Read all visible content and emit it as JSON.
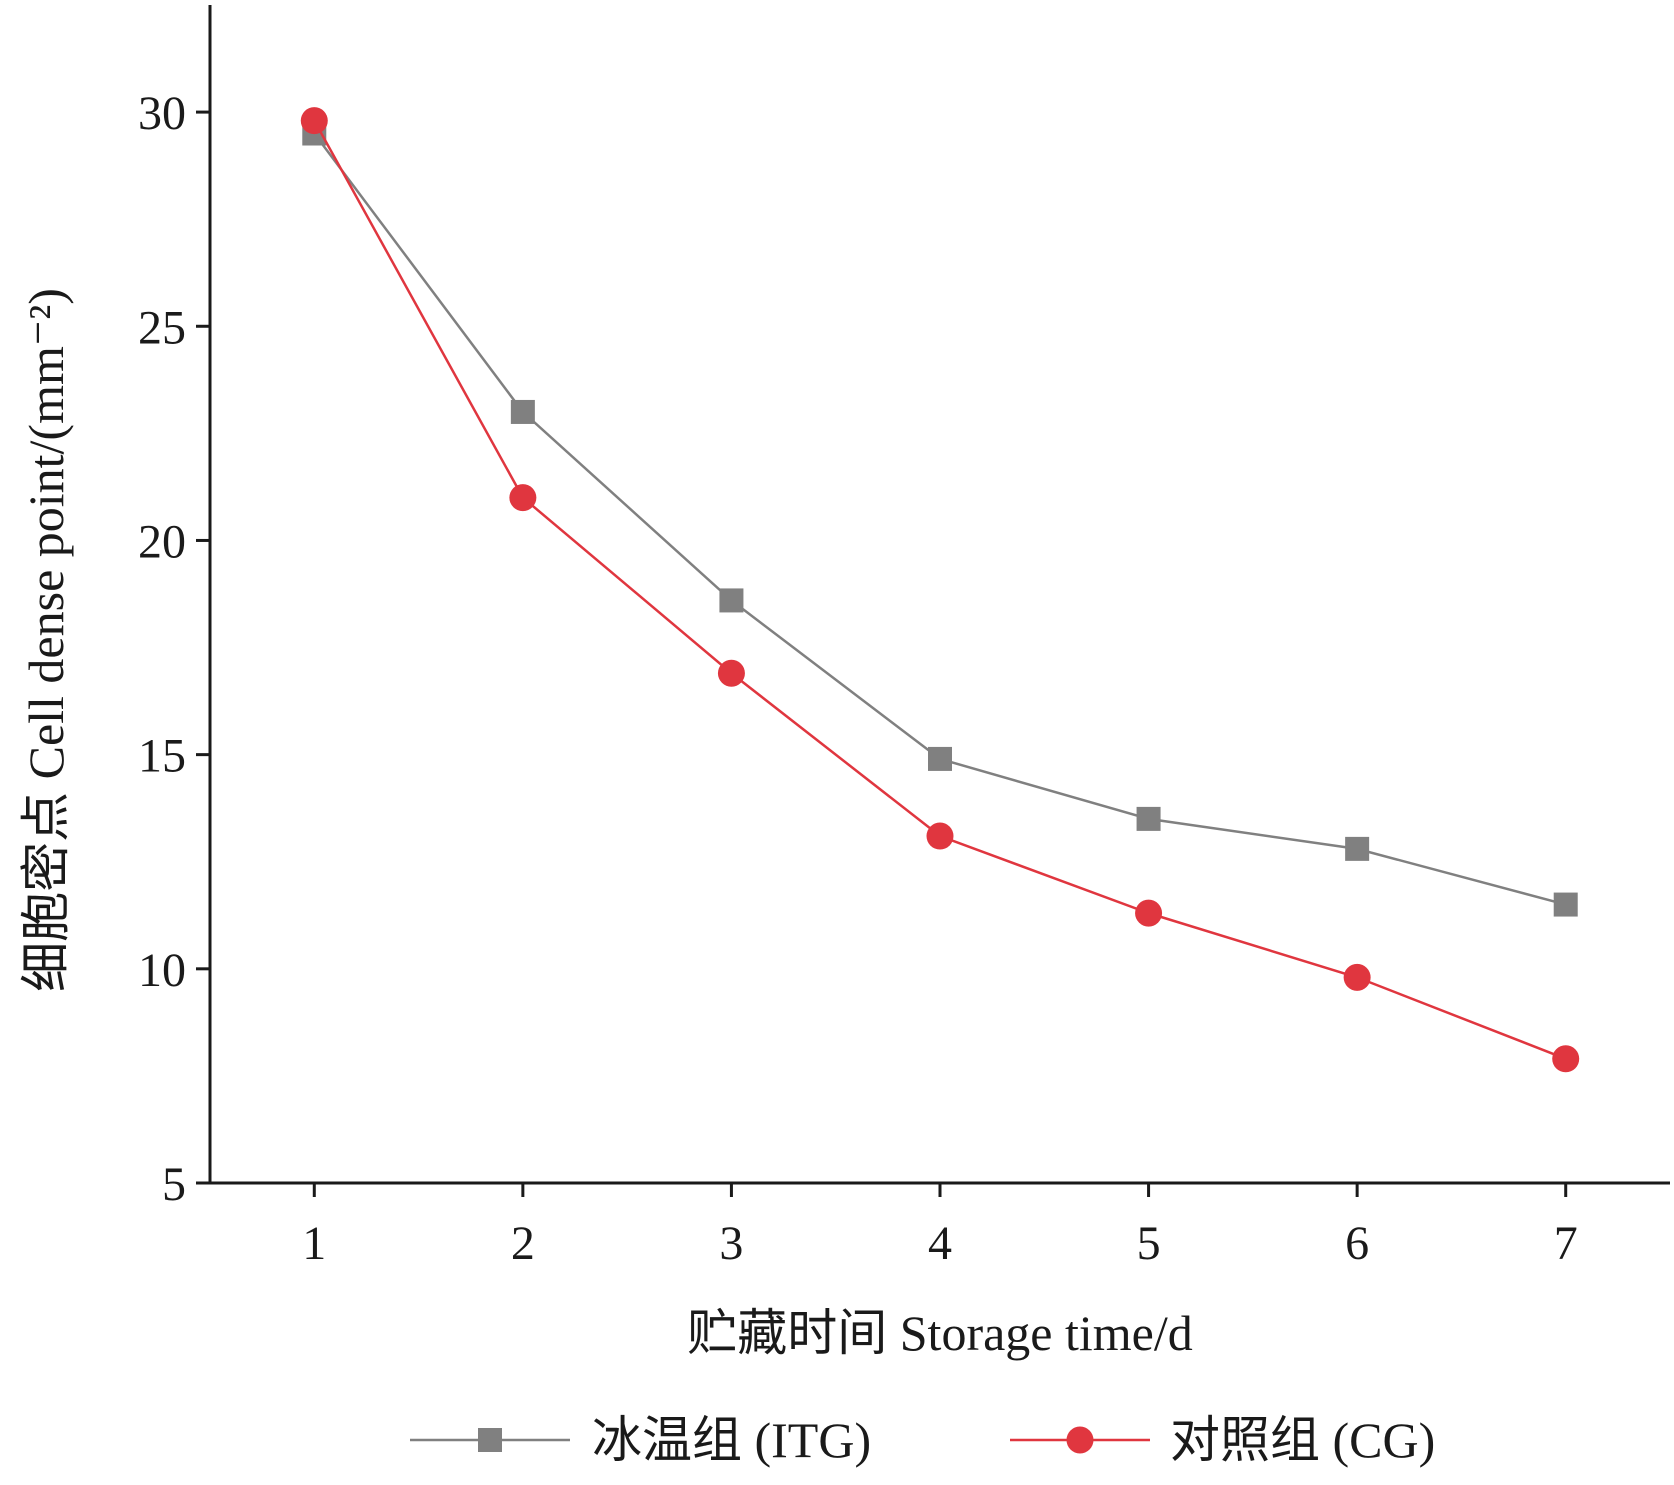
{
  "chart_data": {
    "type": "line",
    "xlabel": "贮藏时间  Storage time/d",
    "ylabel": "细胞密点  Cell dense point/(mm⁻²)",
    "x": [
      1,
      2,
      3,
      4,
      5,
      6,
      7
    ],
    "xlim": [
      0.5,
      7.5
    ],
    "ylim": [
      5,
      32.5
    ],
    "yticks": [
      5,
      10,
      15,
      20,
      25,
      30
    ],
    "grid": false,
    "legend_position": "bottom",
    "series": [
      {
        "name": "冰温组  (ITG)",
        "marker": "square",
        "color": "#808080",
        "values": [
          29.5,
          23.0,
          18.6,
          14.9,
          13.5,
          12.8,
          11.5
        ]
      },
      {
        "name": "对照组  (CG)",
        "marker": "circle",
        "color": "#e0363f",
        "values": [
          29.8,
          21.0,
          16.9,
          13.1,
          11.3,
          9.8,
          7.9
        ]
      }
    ]
  }
}
